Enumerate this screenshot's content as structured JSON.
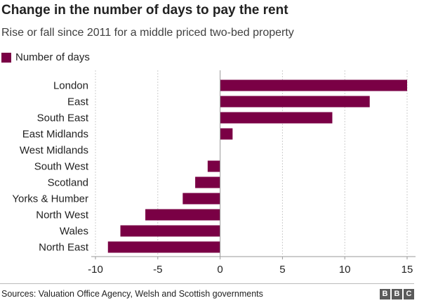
{
  "title": "Change in the number of days to pay the rent",
  "subtitle": "Rise or fall since 2011 for a middle priced two-bed property",
  "legend": {
    "label": "Number of days",
    "color": "#7a0045"
  },
  "source": "Sources: Valuation Office Agency, Welsh and Scottish governments",
  "logo": {
    "letters": [
      "B",
      "B",
      "C"
    ]
  },
  "chart_data": {
    "type": "bar",
    "orientation": "horizontal",
    "categories": [
      "London",
      "East",
      "South East",
      "East Midlands",
      "West Midlands",
      "South West",
      "Scotland",
      "Yorks & Humber",
      "North West",
      "Wales",
      "North East"
    ],
    "series": [
      {
        "name": "Number of days",
        "values": [
          15,
          12,
          9,
          1,
          0,
          -1,
          -2,
          -3,
          -6,
          -8,
          -9
        ]
      }
    ],
    "xticks": [
      -10,
      -5,
      0,
      5,
      10,
      15
    ],
    "xlim": [
      -10,
      15
    ],
    "grid": true,
    "legend_position": "top-left",
    "bar_color": "#7a0045"
  }
}
